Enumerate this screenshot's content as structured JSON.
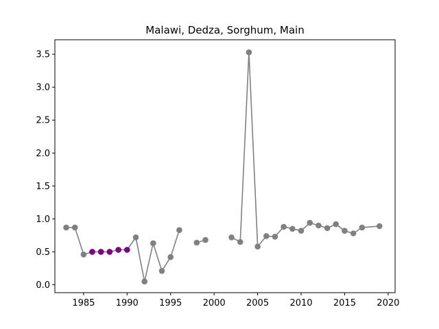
{
  "chart_data": {
    "type": "line",
    "title": "Malawi, Dedza, Sorghum, Main",
    "xlabel": "",
    "ylabel": "",
    "xlim": [
      1981.7,
      2020.8
    ],
    "ylim": [
      -0.12,
      3.72
    ],
    "x_ticks": [
      1985,
      1990,
      1995,
      2000,
      2005,
      2010,
      2015,
      2020
    ],
    "x_tick_labels": [
      "1985",
      "1990",
      "1995",
      "2000",
      "2005",
      "2010",
      "2015",
      "2020"
    ],
    "y_ticks": [
      0.0,
      0.5,
      1.0,
      1.5,
      2.0,
      2.5,
      3.0,
      3.5
    ],
    "y_tick_labels": [
      "0.0",
      "0.5",
      "1.0",
      "1.5",
      "2.0",
      "2.5",
      "3.0",
      "3.5"
    ],
    "grid": false,
    "series": [
      {
        "color": "#808080",
        "segments": [
          [
            [
              1983,
              0.87
            ],
            [
              1984,
              0.87
            ],
            [
              1985,
              0.46
            ],
            [
              1986,
              0.5
            ],
            [
              1987,
              0.5
            ],
            [
              1988,
              0.5
            ],
            [
              1989,
              0.53
            ],
            [
              1990,
              0.53
            ],
            [
              1991,
              0.72
            ],
            [
              1992,
              0.05
            ],
            [
              1993,
              0.63
            ],
            [
              1994,
              0.21
            ],
            [
              1995,
              0.42
            ],
            [
              1996,
              0.83
            ]
          ],
          [
            [
              1998,
              0.64
            ],
            [
              1999,
              0.68
            ]
          ],
          [
            [
              2002,
              0.72
            ],
            [
              2003,
              0.65
            ],
            [
              2004,
              3.53
            ],
            [
              2005,
              0.58
            ],
            [
              2006,
              0.74
            ],
            [
              2007,
              0.73
            ],
            [
              2008,
              0.88
            ],
            [
              2009,
              0.85
            ],
            [
              2010,
              0.82
            ],
            [
              2011,
              0.94
            ],
            [
              2012,
              0.9
            ],
            [
              2013,
              0.86
            ],
            [
              2014,
              0.92
            ],
            [
              2015,
              0.82
            ],
            [
              2016,
              0.78
            ],
            [
              2017,
              0.87
            ],
            [
              2019,
              0.89
            ]
          ]
        ]
      },
      {
        "color": "#800080",
        "points": [
          [
            1986,
            0.5
          ],
          [
            1987,
            0.5
          ],
          [
            1988,
            0.5
          ],
          [
            1989,
            0.53
          ],
          [
            1990,
            0.53
          ]
        ]
      }
    ]
  }
}
